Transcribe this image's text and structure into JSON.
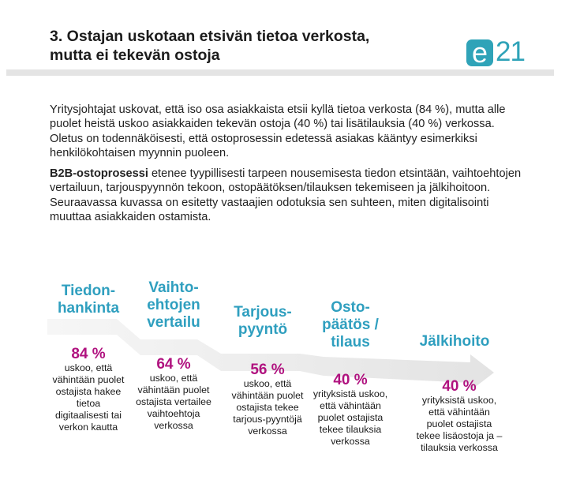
{
  "header": {
    "title_line1": "3. Ostajan uskotaan etsivän tietoa verkosta,",
    "title_line2": "mutta ei tekevän ostoja",
    "logo_letter": "e",
    "logo_digits": "21",
    "logo_color": "#2fa3b8"
  },
  "body": {
    "paragraph1": "Yritysjohtajat uskovat, että iso osa asiakkaista etsii kyllä tietoa verkosta (84 %), mutta alle puolet heistä uskoo asiakkaiden tekevän ostoja (40 %) tai lisätilauksia (40 %) verkossa. Oletus on todennäköisesti, että ostoprosessin edetessä asiakas kääntyy esimerkiksi henkilökohtaisen myynnin puoleen.",
    "paragraph2_bold": "B2B-ostoprosessi",
    "paragraph2_rest": " etenee tyypillisesti tarpeen nousemisesta tiedon etsintään, vaihtoehtojen vertailuun, tarjouspyynnön tekoon, ostopäätöksen/tilauksen tekemiseen ja jälkihoitoon. Seuraavassa kuvassa on esitetty vastaajien odotuksia sen suhteen, miten digitalisointi muuttaa asiakkaiden ostamista."
  },
  "colors": {
    "step_title": "#2f9fbf",
    "percentage": "#b0127f",
    "arrow": "#ececec"
  },
  "steps": [
    {
      "title": "Tiedon-\nhankinta",
      "percent": "84 %",
      "percent_value": 84,
      "description": "uskoo, että\nvähintään puolet\nostajista hakee\ntietoa\ndigitaalisesti tai\nverkon kautta"
    },
    {
      "title": "Vaihto-\nehtojen\nvertailu",
      "percent": "64 %",
      "percent_value": 64,
      "description": "uskoo, että\nvähintään puolet\nostajista vertailee\nvaihtoehtoja\nverkossa"
    },
    {
      "title": "Tarjous-\npyyntö",
      "percent": "56 %",
      "percent_value": 56,
      "description": "uskoo, että\nvähintään puolet\nostajista tekee\ntarjous-pyyntöjä\nverkossa"
    },
    {
      "title": "Osto-\npäätös /\ntilaus",
      "percent": "40 %",
      "percent_value": 40,
      "description": "yrityksistä uskoo,\nettä vähintään\npuolet ostajista\ntekee tilauksia\nverkossa"
    },
    {
      "title": "Jälkihoito",
      "percent": "40 %",
      "percent_value": 40,
      "description": "yrityksistä uskoo,\nettä vähintään\npuolet ostajista\ntekee lisäostoja ja –\ntilauksia verkossa"
    }
  ]
}
